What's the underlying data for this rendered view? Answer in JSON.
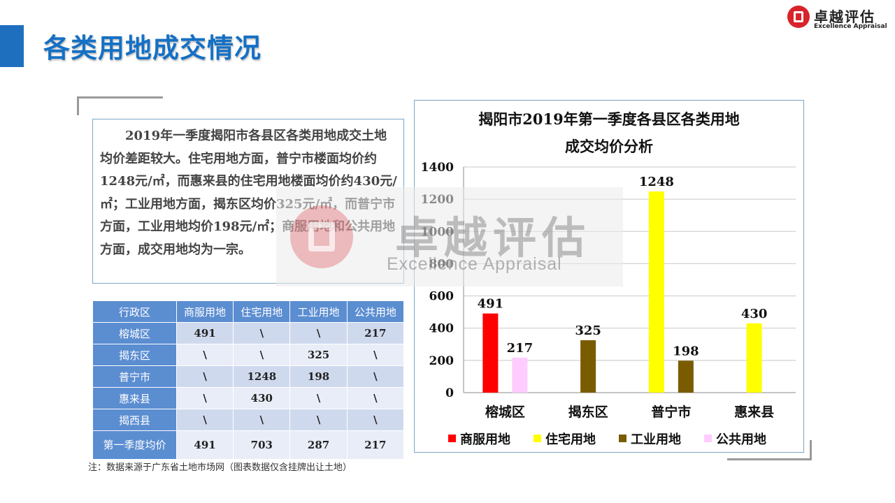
{
  "header": {
    "title": "各类用地成交情况",
    "logo_cn": "卓越评估",
    "logo_en": "Excellence Appraisal"
  },
  "summary": {
    "paragraph": "2019年一季度揭阳市各县区各类用地成交土地均价差距较大。住宅用地方面，普宁市楼面均价约1248元/㎡，而惠来县的住宅用地楼面均价约430元/㎡；工业用地方面，揭东区均价325元/㎡，而普宁市方面，工业用地均价198元/㎡；商服用地和公共用地方面，成交用地均为一宗。"
  },
  "table": {
    "headers": [
      "行政区",
      "商服用地",
      "住宅用地",
      "工业用地",
      "公共用地"
    ],
    "rows": [
      [
        "榕城区",
        "491",
        "\\",
        "\\",
        "217"
      ],
      [
        "揭东区",
        "\\",
        "\\",
        "325",
        "\\"
      ],
      [
        "普宁市",
        "\\",
        "1248",
        "198",
        "\\"
      ],
      [
        "惠来县",
        "\\",
        "430",
        "\\",
        "\\"
      ],
      [
        "揭西县",
        "\\",
        "\\",
        "\\",
        "\\"
      ],
      [
        "第一季度均价",
        "491",
        "703",
        "287",
        "217"
      ]
    ]
  },
  "note": "注：数据来源于广东省土地市场网（图表数据仅含挂牌出让土地）",
  "watermark": {
    "cn": "卓越评估",
    "en": "Excellence Appraisal"
  },
  "chart_data": {
    "type": "bar",
    "title_line1": "揭阳市2019年第一季度各县区各类用地",
    "title_line2": "成交均价分析",
    "categories": [
      "榕城区",
      "揭东区",
      "普宁市",
      "惠来县"
    ],
    "ylim": [
      0,
      1400
    ],
    "yticks": [
      0,
      200,
      400,
      600,
      800,
      1000,
      1200,
      1400
    ],
    "grid": true,
    "legend_position": "bottom",
    "series": [
      {
        "name": "商服用地",
        "color": "#ff0000",
        "values": [
          491,
          null,
          null,
          null
        ]
      },
      {
        "name": "住宅用地",
        "color": "#ffff00",
        "values": [
          null,
          null,
          1248,
          430
        ]
      },
      {
        "name": "工业用地",
        "color": "#7a5c00",
        "values": [
          null,
          325,
          198,
          null
        ]
      },
      {
        "name": "公共用地",
        "color": "#ffccff",
        "values": [
          217,
          null,
          null,
          null
        ]
      }
    ]
  }
}
